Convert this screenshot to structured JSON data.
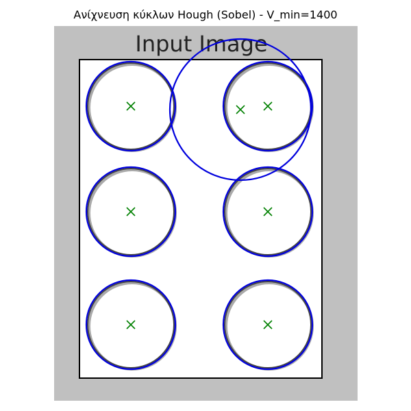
{
  "title": "Ανίχνευση κύκλων Hough (Sobel) - V_min=1400",
  "image": {
    "heading": "Input Image",
    "background_color": "#c0c0c0",
    "paper_color": "#ffffff",
    "ring_color": "#444444"
  },
  "detections": {
    "circle_color": "#0000dd",
    "center_marker_color": "#008000",
    "center_marker": "x-marker",
    "count": 7
  }
}
